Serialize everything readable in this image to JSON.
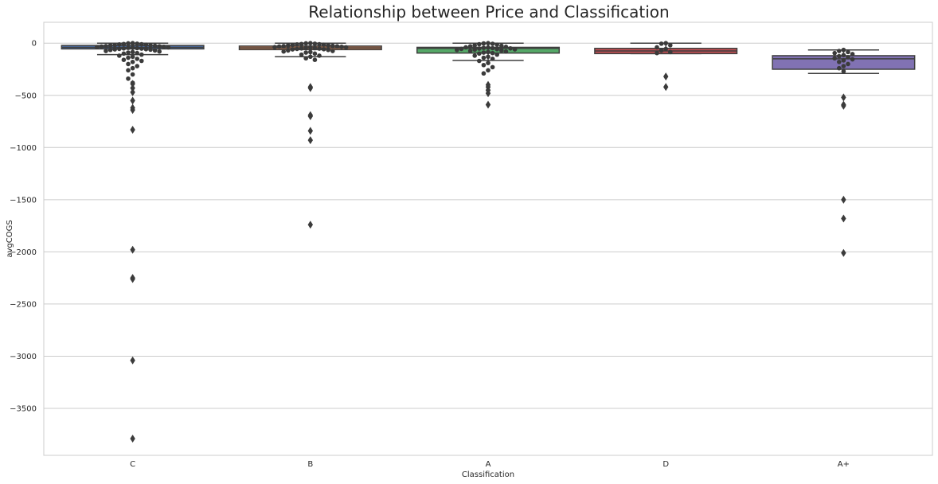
{
  "chart_data": {
    "type": "box",
    "title": "Relationship between Price and Classification",
    "xlabel": "Classification",
    "ylabel": "avgCOGS",
    "categories": [
      "C",
      "B",
      "A",
      "D",
      "A+"
    ],
    "ylim": [
      -3950,
      200
    ],
    "yticks": [
      0,
      -500,
      -1000,
      -1500,
      -2000,
      -2500,
      -3000,
      -3500
    ],
    "grid": "horizontal",
    "box_colors": [
      "#4c72b0",
      "#dd8452",
      "#55a868",
      "#c44e52",
      "#8172b3"
    ],
    "point_color": "#3b3b3b",
    "boxes": [
      {
        "category": "C",
        "q1": -55,
        "median": -40,
        "q3": -22,
        "whisker_low": -110,
        "whisker_high": 0,
        "outliers": [
          -390,
          -430,
          -470,
          -550,
          -620,
          -640,
          -830,
          -1980,
          -2250,
          -2260,
          -3040,
          -3790
        ]
      },
      {
        "category": "B",
        "q1": -62,
        "median": -45,
        "q3": -28,
        "whisker_low": -130,
        "whisker_high": 0,
        "outliers": [
          -420,
          -430,
          -690,
          -700,
          -840,
          -930,
          -1740
        ]
      },
      {
        "category": "A",
        "q1": -95,
        "median": -50,
        "q3": -40,
        "whisker_low": -165,
        "whisker_high": 0,
        "outliers": [
          -400,
          -420,
          -450,
          -480,
          -590
        ]
      },
      {
        "category": "D",
        "q1": -100,
        "median": -75,
        "q3": -50,
        "whisker_low": -100,
        "whisker_high": 0,
        "outliers": [
          -320,
          -420
        ]
      },
      {
        "category": "A+",
        "q1": -250,
        "median": -150,
        "q3": -120,
        "whisker_low": -290,
        "whisker_high": -65,
        "outliers": [
          -520,
          -590,
          -600,
          -1500,
          -1680,
          -2010
        ]
      }
    ],
    "swarm_points": [
      {
        "category": "C",
        "values": [
          0,
          -2,
          -5,
          -8,
          -10,
          -12,
          -15,
          -18,
          -20,
          -22,
          -25,
          -28,
          -30,
          -32,
          -35,
          -38,
          -40,
          -42,
          -45,
          -48,
          -50,
          -52,
          -55,
          -58,
          -60,
          -62,
          -65,
          -70,
          -75,
          -80,
          -85,
          -90,
          -95,
          -100,
          -110,
          -120,
          -130,
          -140,
          -150,
          -160,
          -170,
          -180,
          -200,
          -220,
          -240,
          -260,
          -300,
          -340,
          -380
        ]
      },
      {
        "category": "B",
        "values": [
          0,
          -2,
          -5,
          -8,
          -10,
          -12,
          -15,
          -18,
          -20,
          -22,
          -25,
          -28,
          -30,
          -32,
          -35,
          -38,
          -40,
          -42,
          -45,
          -48,
          -50,
          -52,
          -55,
          -58,
          -60,
          -65,
          -70,
          -75,
          -80,
          -85,
          -90,
          -100,
          -110,
          -120,
          -130,
          -145,
          -160
        ]
      },
      {
        "category": "A",
        "values": [
          0,
          -3,
          -6,
          -10,
          -15,
          -20,
          -25,
          -30,
          -35,
          -40,
          -42,
          -45,
          -48,
          -50,
          -52,
          -55,
          -58,
          -60,
          -62,
          -65,
          -70,
          -75,
          -80,
          -85,
          -90,
          -95,
          -100,
          -110,
          -120,
          -130,
          -140,
          -150,
          -170,
          -190,
          -210,
          -230,
          -260,
          -290
        ]
      },
      {
        "category": "D",
        "values": [
          0,
          -5,
          -20,
          -40,
          -55,
          -70,
          -85,
          -95
        ]
      },
      {
        "category": "A+",
        "values": [
          -65,
          -75,
          -85,
          -95,
          -105,
          -115,
          -125,
          -135,
          -145,
          -155,
          -165,
          -180,
          -200,
          -220,
          -240,
          -270
        ]
      }
    ]
  }
}
